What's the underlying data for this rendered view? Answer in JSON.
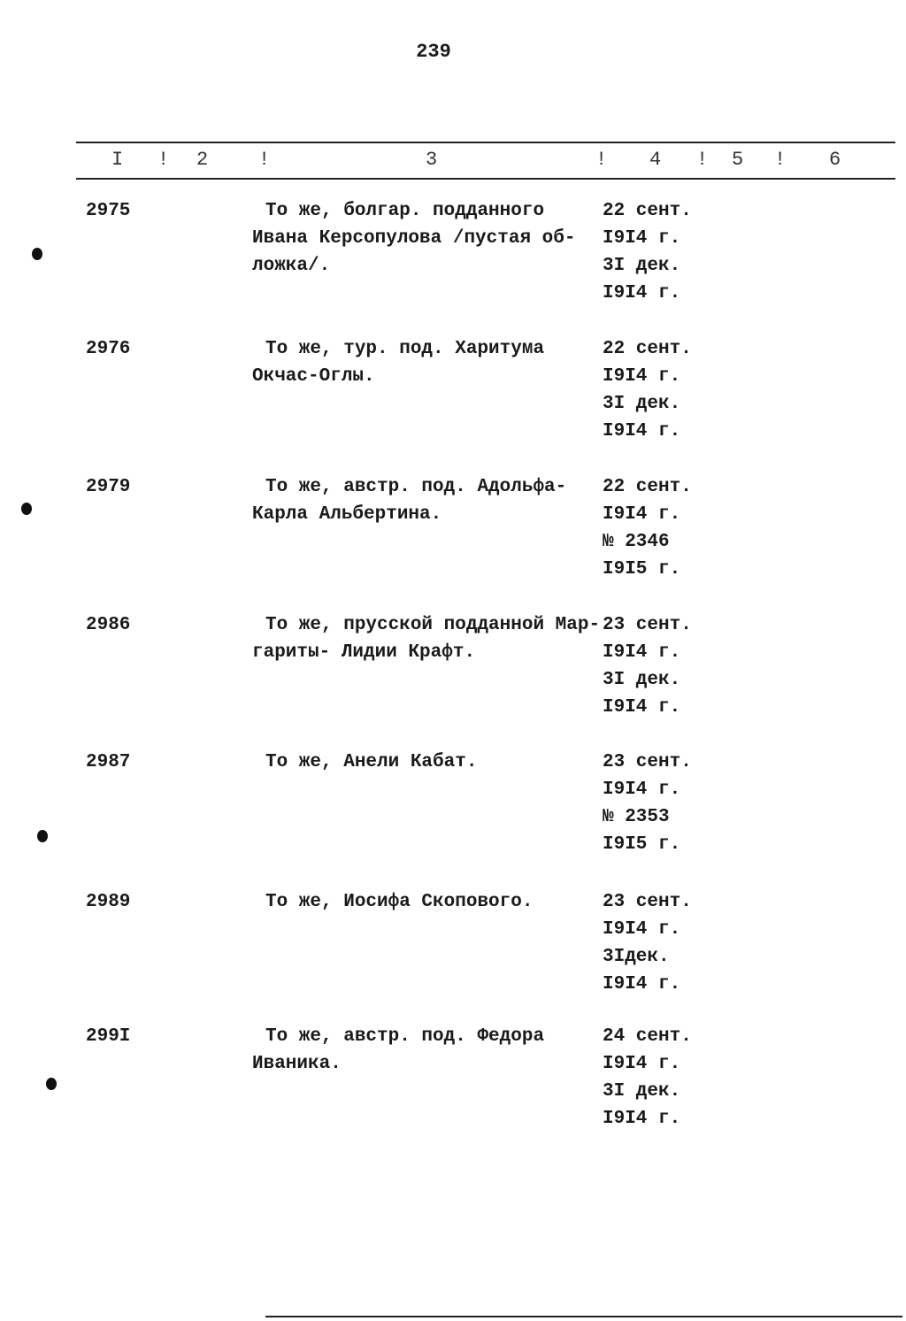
{
  "page_number": "239",
  "header": {
    "col1": "I",
    "col2": "2",
    "col3": "3",
    "col4": "4",
    "col5": "5",
    "col6": "6",
    "separator": "!"
  },
  "rows": [
    {
      "number": "2975",
      "description": [
        "То же, болгар. подданного",
        "Ивана Керсопулова /пустая об-",
        "ложка/."
      ],
      "dates": [
        "22 сент.",
        "I9I4 г.",
        "3I дек.",
        "I9I4 г."
      ]
    },
    {
      "number": "2976",
      "description": [
        "То же, тур. под. Харитума",
        "Окчас-Оглы."
      ],
      "dates": [
        "22 сент.",
        "I9I4 г.",
        "3I дек.",
        "I9I4 г."
      ]
    },
    {
      "number": "2979",
      "description": [
        "То же, австр. под. Адольфа-",
        "Карла Альбертина."
      ],
      "dates": [
        "22 сент.",
        "I9I4 г.",
        "№ 2346",
        "I9I5 г."
      ]
    },
    {
      "number": "2986",
      "description": [
        "То же, прусской подданной Мар-",
        "гариты- Лидии Крафт."
      ],
      "dates": [
        "23 сент.",
        "I9I4 г.",
        "3I дек.",
        "I9I4 г."
      ]
    },
    {
      "number": "2987",
      "description": [
        "То же, Анели Кабат."
      ],
      "dates": [
        "23 сент.",
        "I9I4 г.",
        "№ 2353",
        "I9I5 г."
      ]
    },
    {
      "number": "2989",
      "description": [
        "То же, Иосифа Скопового."
      ],
      "dates": [
        "23 сент.",
        "I9I4 г.",
        "3Iдек.",
        "I9I4 г."
      ]
    },
    {
      "number": "299I",
      "description": [
        "То же, австр. под. Федора",
        "Иваника."
      ],
      "dates": [
        "24 сент.",
        "I9I4 г.",
        "3I дек.",
        "I9I4 г."
      ]
    }
  ]
}
